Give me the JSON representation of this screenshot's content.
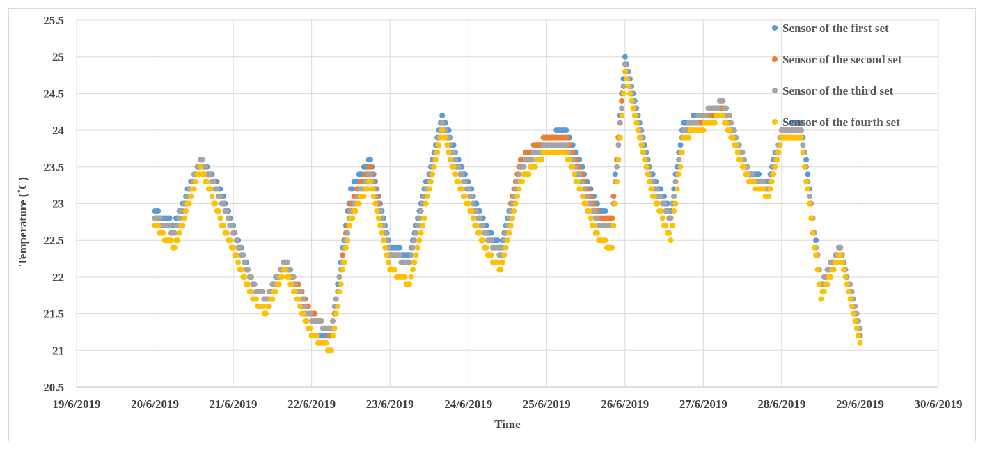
{
  "chart_data": {
    "type": "scatter",
    "title": "",
    "xlabel": "Time",
    "ylabel": "Temperature (˚C)",
    "x_ticks": [
      "19/6/2019",
      "20/6/2019",
      "21/6/2019",
      "22/6/2019",
      "23/6/2019",
      "24/6/2019",
      "25/6/2019",
      "26/6/2019",
      "27/6/2019",
      "28/6/2019",
      "29/6/2019",
      "30/6/2019"
    ],
    "y_ticks": [
      "20.5",
      "21",
      "21.5",
      "22",
      "22.5",
      "23",
      "23.5",
      "24",
      "24.5",
      "25",
      "25.5"
    ],
    "xlim": [
      "19/6/2019",
      "30/6/2019"
    ],
    "ylim": [
      20.5,
      25.5
    ],
    "grid": true,
    "legend_position": "top-right",
    "x": [
      "20/6/2019 00:00",
      "20/6/2019 06:00",
      "20/6/2019 14:00",
      "20/6/2019 20:00",
      "21/6/2019 06:00",
      "21/6/2019 10:00",
      "21/6/2019 16:00",
      "22/6/2019 00:00",
      "22/6/2019 06:00",
      "22/6/2019 12:00",
      "22/6/2019 18:00",
      "23/6/2019 00:00",
      "23/6/2019 06:00",
      "23/6/2019 16:00",
      "23/6/2019 20:00",
      "24/6/2019 06:00",
      "24/6/2019 10:00",
      "24/6/2019 16:00",
      "25/6/2019 00:00",
      "25/6/2019 06:00",
      "25/6/2019 16:00",
      "25/6/2019 20:00",
      "26/6/2019 00:00",
      "26/6/2019 08:00",
      "26/6/2019 14:00",
      "26/6/2019 18:00",
      "27/6/2019 06:00",
      "27/6/2019 14:00",
      "27/6/2019 20:00",
      "28/6/2019 00:00",
      "28/6/2019 06:00",
      "28/6/2019 12:00",
      "28/6/2019 18:00",
      "29/6/2019 00:00"
    ],
    "series": [
      {
        "name": "Sensor of the first set",
        "color": "#5b9bd5",
        "values": [
          22.9,
          22.7,
          23.6,
          23.2,
          21.9,
          21.7,
          22.2,
          21.2,
          21.2,
          23.2,
          23.6,
          22.4,
          22.3,
          24.2,
          23.7,
          22.6,
          22.4,
          23.5,
          23.9,
          24.0,
          22.9,
          22.8,
          25.0,
          23.4,
          22.9,
          24.1,
          24.3,
          23.4,
          23.3,
          24.0,
          24.1,
          21.9,
          22.4,
          21.2
        ]
      },
      {
        "name": "Sensor of the second set",
        "color": "#ed7d31",
        "values": [
          22.8,
          22.6,
          23.6,
          23.1,
          21.9,
          21.7,
          22.2,
          21.5,
          21.2,
          23.0,
          23.5,
          22.3,
          22.2,
          24.1,
          23.6,
          22.5,
          22.3,
          23.6,
          23.9,
          23.9,
          22.8,
          22.8,
          24.9,
          23.3,
          22.8,
          24.0,
          24.3,
          23.4,
          23.2,
          23.9,
          24.0,
          21.9,
          22.4,
          21.2
        ]
      },
      {
        "name": "Sensor of the third set",
        "color": "#a5a5a5",
        "values": [
          22.8,
          22.6,
          23.6,
          23.1,
          21.9,
          21.7,
          22.2,
          21.4,
          21.3,
          22.9,
          23.4,
          22.3,
          22.2,
          24.1,
          23.6,
          22.5,
          22.3,
          23.5,
          23.8,
          23.8,
          22.7,
          22.7,
          24.9,
          23.3,
          22.8,
          24.0,
          24.4,
          23.4,
          23.2,
          24.0,
          24.0,
          21.9,
          22.4,
          21.3
        ]
      },
      {
        "name": "Sensor of the fourth set",
        "color": "#ffc000",
        "values": [
          22.7,
          22.4,
          23.5,
          22.8,
          21.7,
          21.5,
          22.1,
          21.2,
          21.0,
          22.8,
          23.3,
          22.1,
          21.9,
          24.0,
          23.4,
          22.3,
          22.1,
          23.3,
          23.7,
          23.7,
          22.5,
          22.4,
          24.8,
          23.2,
          22.5,
          23.9,
          24.2,
          23.3,
          23.1,
          23.9,
          23.9,
          21.7,
          22.3,
          21.1
        ]
      }
    ]
  }
}
